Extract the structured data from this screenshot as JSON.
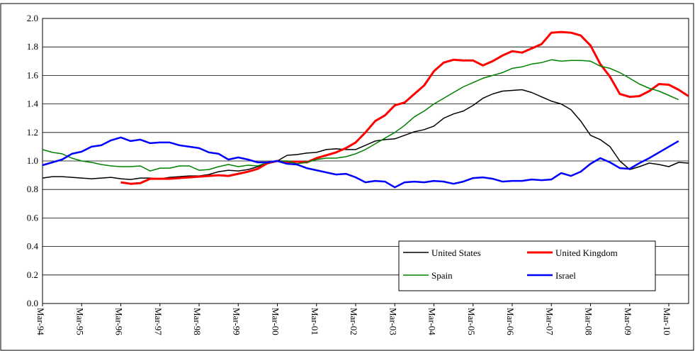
{
  "chart_data": {
    "type": "line",
    "categories": [
      "Mar-94",
      null,
      null,
      null,
      "Mar-95",
      null,
      null,
      null,
      "Mar-96",
      null,
      null,
      null,
      "Mar-97",
      null,
      null,
      null,
      "Mar-98",
      null,
      null,
      null,
      "Mar-99",
      null,
      null,
      null,
      "Mar-00",
      null,
      null,
      null,
      "Mar-01",
      null,
      null,
      null,
      "Mar-02",
      null,
      null,
      null,
      "Mar-03",
      null,
      null,
      null,
      "Mar-04",
      null,
      null,
      null,
      "Mar-05",
      null,
      null,
      null,
      "Mar-06",
      null,
      null,
      null,
      "Mar-07",
      null,
      null,
      null,
      "Mar-08",
      null,
      null,
      null,
      "Mar-09",
      null,
      null,
      null,
      "Mar-10",
      null,
      null
    ],
    "series": [
      {
        "name": "United States",
        "color": "#000000",
        "width": 1.5,
        "values": [
          0.88,
          0.89,
          0.89,
          0.885,
          0.88,
          0.875,
          0.88,
          0.885,
          0.875,
          0.87,
          0.88,
          0.88,
          0.875,
          0.885,
          0.89,
          0.895,
          0.895,
          0.905,
          0.925,
          0.935,
          0.93,
          0.94,
          0.96,
          0.98,
          1.0,
          1.04,
          1.045,
          1.055,
          1.06,
          1.08,
          1.085,
          1.08,
          1.08,
          1.11,
          1.14,
          1.15,
          1.155,
          1.18,
          1.205,
          1.22,
          1.245,
          1.3,
          1.33,
          1.35,
          1.39,
          1.44,
          1.47,
          1.49,
          1.495,
          1.5,
          1.48,
          1.45,
          1.42,
          1.4,
          1.36,
          1.28,
          1.18,
          1.15,
          1.1,
          1.0,
          0.94,
          0.96,
          0.985,
          0.975,
          0.96,
          0.99,
          0.985
        ]
      },
      {
        "name": "United Kingdom",
        "color": "#ff0000",
        "width": 3,
        "values": [
          null,
          null,
          null,
          null,
          null,
          null,
          null,
          null,
          0.85,
          0.84,
          0.845,
          0.875,
          0.875,
          0.875,
          0.88,
          0.885,
          0.89,
          0.895,
          0.9,
          0.895,
          0.91,
          0.925,
          0.945,
          0.985,
          1.0,
          0.99,
          0.995,
          0.99,
          1.02,
          1.04,
          1.06,
          1.09,
          1.13,
          1.2,
          1.28,
          1.32,
          1.39,
          1.41,
          1.47,
          1.53,
          1.63,
          1.69,
          1.71,
          1.705,
          1.705,
          1.67,
          1.7,
          1.74,
          1.77,
          1.76,
          1.79,
          1.82,
          1.9,
          1.905,
          1.9,
          1.88,
          1.81,
          1.68,
          1.59,
          1.47,
          1.45,
          1.455,
          1.49,
          1.54,
          1.535,
          1.5,
          1.455
        ]
      },
      {
        "name": "Spain",
        "color": "#008000",
        "width": 1.5,
        "values": [
          1.08,
          1.06,
          1.05,
          1.02,
          1.0,
          0.99,
          0.975,
          0.965,
          0.96,
          0.96,
          0.965,
          0.93,
          0.95,
          0.95,
          0.965,
          0.965,
          0.935,
          0.94,
          0.96,
          0.975,
          0.96,
          0.97,
          0.965,
          0.99,
          1.0,
          1.0,
          0.98,
          0.99,
          1.01,
          1.02,
          1.02,
          1.03,
          1.05,
          1.08,
          1.12,
          1.16,
          1.2,
          1.25,
          1.31,
          1.35,
          1.4,
          1.44,
          1.48,
          1.52,
          1.55,
          1.58,
          1.6,
          1.62,
          1.65,
          1.66,
          1.68,
          1.69,
          1.71,
          1.7,
          1.705,
          1.705,
          1.7,
          1.665,
          1.65,
          1.62,
          1.58,
          1.54,
          1.51,
          1.49,
          1.46,
          1.43,
          null
        ]
      },
      {
        "name": "Israel",
        "color": "#0000ff",
        "width": 2.5,
        "values": [
          0.97,
          0.99,
          1.01,
          1.05,
          1.065,
          1.1,
          1.11,
          1.145,
          1.165,
          1.14,
          1.15,
          1.125,
          1.13,
          1.13,
          1.11,
          1.1,
          1.09,
          1.06,
          1.05,
          1.01,
          1.025,
          1.01,
          0.99,
          0.99,
          1.0,
          0.98,
          0.975,
          0.95,
          0.935,
          0.92,
          0.905,
          0.91,
          0.885,
          0.85,
          0.86,
          0.855,
          0.815,
          0.85,
          0.855,
          0.85,
          0.86,
          0.855,
          0.84,
          0.855,
          0.88,
          0.885,
          0.875,
          0.855,
          0.86,
          0.86,
          0.87,
          0.865,
          0.87,
          0.915,
          0.895,
          0.925,
          0.98,
          1.02,
          0.99,
          0.95,
          0.945,
          0.985,
          1.02,
          1.06,
          1.1,
          1.14,
          null
        ]
      }
    ],
    "ylim": [
      0,
      2.0
    ],
    "yticks": [
      {
        "value": 0,
        "label": "0.0"
      },
      {
        "value": 0.2,
        "label": "0.2"
      },
      {
        "value": 0.4,
        "label": "0.4"
      },
      {
        "value": 0.6,
        "label": "0.6"
      },
      {
        "value": 0.8,
        "label": "0.8"
      },
      {
        "value": 1,
        "label": "1.0"
      },
      {
        "value": 1.2,
        "label": "1.2"
      },
      {
        "value": 1.4,
        "label": "1.4"
      },
      {
        "value": 1.6,
        "label": "1.6"
      },
      {
        "value": 1.8,
        "label": "1.8"
      },
      {
        "value": 2,
        "label": "2.0"
      }
    ],
    "grid": true
  }
}
